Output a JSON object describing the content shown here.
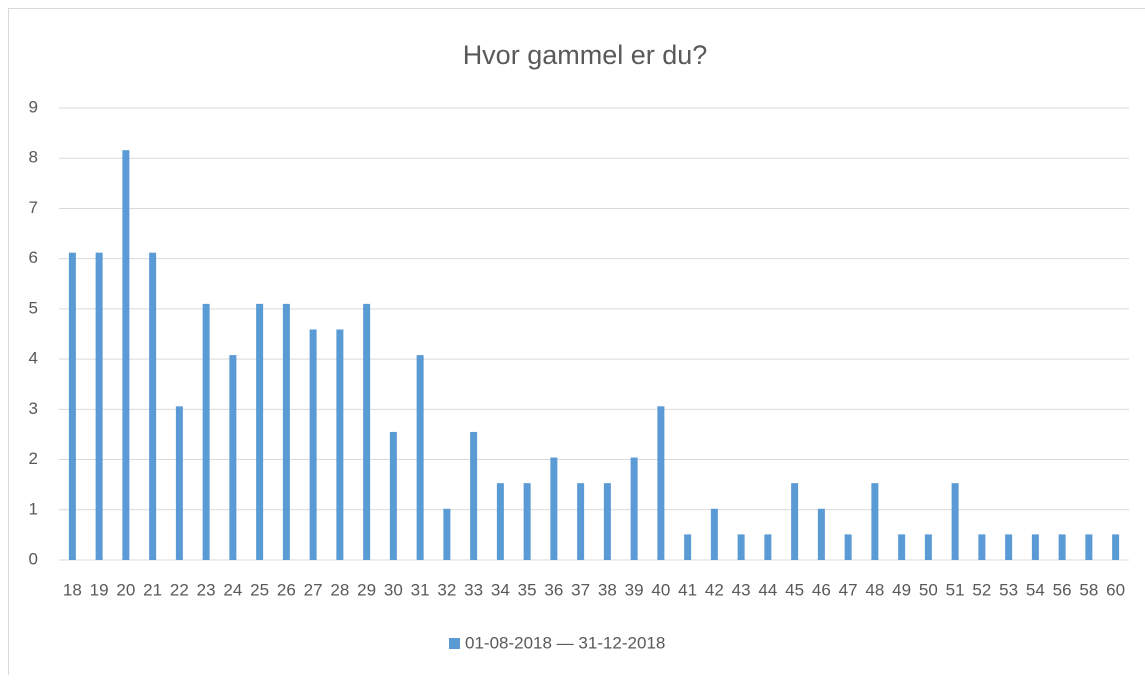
{
  "chart_data": {
    "type": "bar",
    "title": "Hvor gammel er du?",
    "categories": [
      "18",
      "19",
      "20",
      "21",
      "22",
      "23",
      "24",
      "25",
      "26",
      "27",
      "28",
      "29",
      "30",
      "31",
      "32",
      "33",
      "34",
      "35",
      "36",
      "37",
      "38",
      "39",
      "40",
      "41",
      "42",
      "43",
      "44",
      "45",
      "46",
      "47",
      "48",
      "49",
      "50",
      "51",
      "52",
      "53",
      "54",
      "56",
      "58",
      "60"
    ],
    "series": [
      {
        "name": "01-08-2018 — 31-12-2018",
        "color": "#5b9bd5",
        "values": [
          6.12,
          6.12,
          8.16,
          6.12,
          3.06,
          5.1,
          4.08,
          5.1,
          5.1,
          4.59,
          4.59,
          5.1,
          2.55,
          4.08,
          1.02,
          2.55,
          1.53,
          1.53,
          2.04,
          1.53,
          1.53,
          2.04,
          3.06,
          0.51,
          1.02,
          0.51,
          0.51,
          1.53,
          1.02,
          0.51,
          1.53,
          0.51,
          0.51,
          1.53,
          0.51,
          0.51,
          0.51,
          0.51,
          0.51,
          0.51
        ]
      }
    ],
    "ylim": [
      0,
      9
    ],
    "yticks": [
      0,
      1,
      2,
      3,
      4,
      5,
      6,
      7,
      8,
      9
    ],
    "grid": true,
    "legend": "bottom"
  }
}
